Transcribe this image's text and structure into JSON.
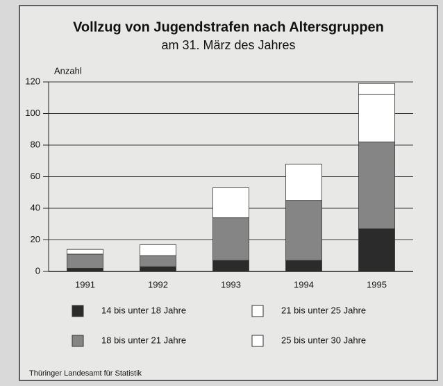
{
  "chart_data": {
    "type": "stacked_bar",
    "title": "Vollzug von Jugendstrafen nach Altersgruppen",
    "subtitle": "am 31. März des Jahres",
    "y_label": "Anzahl",
    "source": "Thüringer Landesamt für Statistik",
    "categories": [
      "1991",
      "1992",
      "1993",
      "1994",
      "1995"
    ],
    "series": [
      {
        "name": "14 bis unter 18 Jahre",
        "color": "#2b2b2b",
        "values": [
          2,
          3,
          7,
          7,
          27
        ]
      },
      {
        "name": "18 bis unter 21 Jahre",
        "color": "#858585",
        "values": [
          9,
          7,
          27,
          38,
          55
        ]
      },
      {
        "name": "21 bis unter 25 Jahre",
        "color": "#ffffff",
        "values": [
          3,
          7,
          19,
          23,
          30
        ]
      },
      {
        "name": "25 bis unter 30 Jahre",
        "color": "#ffffff",
        "values": [
          0,
          0,
          0,
          0,
          7
        ]
      }
    ],
    "ylim": [
      0,
      120
    ],
    "yticks": [
      0,
      20,
      40,
      60,
      80,
      100,
      120
    ],
    "grid": true
  }
}
